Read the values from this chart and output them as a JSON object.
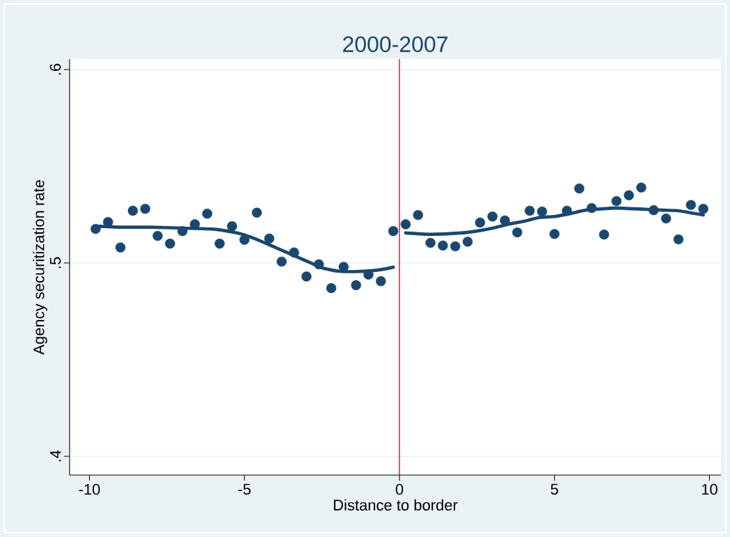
{
  "chart_data": {
    "type": "scatter",
    "title": "2000-2007",
    "xlabel": "Distance to border",
    "ylabel": "Agency securitization rate",
    "xlim": [
      -10.64,
      10.37
    ],
    "ylim": [
      0.3903,
      0.6054
    ],
    "xticks": [
      -10,
      -5,
      0,
      5,
      10
    ],
    "yticks": [
      {
        "value": 0.4,
        "label": ".4"
      },
      {
        "value": 0.5,
        "label": ".5"
      },
      {
        "value": 0.6,
        "label": ".6"
      }
    ],
    "grid": "y",
    "ref_lines": [
      {
        "axis": "x",
        "value": 0,
        "color": "#c10534"
      }
    ],
    "series": [
      {
        "color": "#1a476f",
        "x": [
          -9.8,
          -9.4,
          -9.0,
          -8.6,
          -8.2,
          -7.8,
          -7.4,
          -7.0,
          -6.6,
          -6.2,
          -5.8,
          -5.4,
          -5.0,
          -4.6,
          -4.2,
          -3.8,
          -3.4,
          -3.0,
          -2.6,
          -2.2,
          -1.8,
          -1.4,
          -1.0,
          -0.6,
          -0.2,
          0.2,
          0.6,
          1.0,
          1.4,
          1.8,
          2.2,
          2.6,
          3.0,
          3.4,
          3.8,
          4.2,
          4.6,
          5.0,
          5.4,
          5.8,
          6.2,
          6.6,
          7.0,
          7.4,
          7.8,
          8.2,
          8.6,
          9.0,
          9.4,
          9.8
        ],
        "values": [
          0.5176,
          0.5212,
          0.508,
          0.527,
          0.528,
          0.514,
          0.51,
          0.5165,
          0.52,
          0.5255,
          0.51,
          0.519,
          0.512,
          0.526,
          0.5126,
          0.5007,
          0.5054,
          0.493,
          0.4993,
          0.487,
          0.498,
          0.4885,
          0.494,
          0.4906,
          0.5165,
          0.52,
          0.5248,
          0.5104,
          0.509,
          0.5086,
          0.511,
          0.5209,
          0.524,
          0.522,
          0.5158,
          0.527,
          0.5266,
          0.515,
          0.527,
          0.5385,
          0.5284,
          0.5147,
          0.532,
          0.535,
          0.539,
          0.5273,
          0.523,
          0.5122,
          0.53,
          0.528
        ]
      },
      {
        "type": "line",
        "color": "#1a476f",
        "x": [
          -9.8,
          -9,
          -8,
          -7,
          -6,
          -5.4,
          -5,
          -4.5,
          -4,
          -3.5,
          -3,
          -2.5,
          -2,
          -1.5,
          -1,
          -0.5,
          -0.2
        ],
        "values": [
          0.519,
          0.5185,
          0.5185,
          0.518,
          0.5175,
          0.516,
          0.5145,
          0.5115,
          0.508,
          0.5045,
          0.501,
          0.4975,
          0.4958,
          0.4955,
          0.4958,
          0.4968,
          0.4978
        ]
      },
      {
        "type": "line",
        "color": "#1a476f",
        "x": [
          0.2,
          1,
          2,
          2.5,
          3,
          3.5,
          4,
          4.5,
          5,
          5.5,
          6,
          7,
          8,
          8.5,
          9,
          9.8
        ],
        "values": [
          0.5155,
          0.5148,
          0.5155,
          0.5165,
          0.518,
          0.52,
          0.5215,
          0.5235,
          0.524,
          0.5255,
          0.5273,
          0.5284,
          0.5277,
          0.5273,
          0.527,
          0.5248
        ]
      }
    ]
  }
}
